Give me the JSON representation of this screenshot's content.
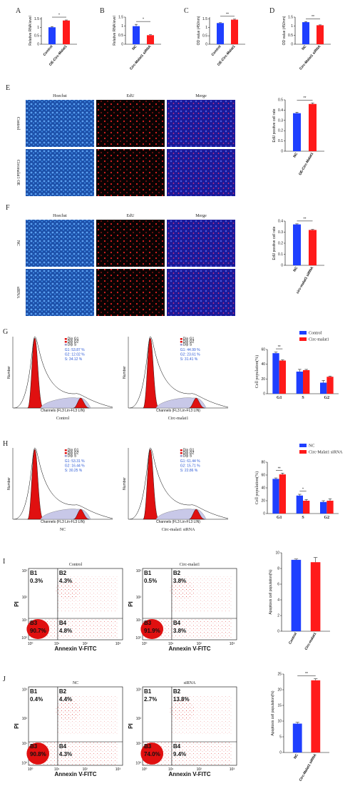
{
  "panels": {
    "A": {
      "letter": "A",
      "ylabel": "Relative RNA level",
      "cats": [
        "Control",
        "OE-Circ-Malat1"
      ],
      "vals": [
        1.0,
        1.4
      ],
      "err": [
        0.04,
        0.03
      ],
      "ymax": 1.6,
      "ticks": [
        0,
        0.5,
        1.0,
        1.5
      ],
      "sig": "*"
    },
    "B": {
      "letter": "B",
      "ylabel": "Relative RNA level",
      "cats": [
        "NC",
        "Circ-Malat1 siRNA"
      ],
      "vals": [
        1.0,
        0.5
      ],
      "err": [
        0.1,
        0.03
      ],
      "ymax": 1.5,
      "ticks": [
        0,
        0.5,
        1.0,
        1.5
      ],
      "sig": "*"
    },
    "C": {
      "letter": "C",
      "ylabel": "OD value (450nm)",
      "cats": [
        "Control",
        "OE-Circ-Malat1"
      ],
      "vals": [
        1.25,
        1.45
      ],
      "err": [
        0.02,
        0.03
      ],
      "ymax": 1.6,
      "ticks": [
        0,
        0.5,
        1.0,
        1.5
      ],
      "sig": "**"
    },
    "D": {
      "letter": "D",
      "ylabel": "OD value (450nm)",
      "cats": [
        "NC",
        "Circ-Malat1 siRNA"
      ],
      "vals": [
        1.22,
        1.05
      ],
      "err": [
        0.03,
        0.02
      ],
      "ymax": 1.5,
      "ticks": [
        0,
        0.5,
        1.0,
        1.5
      ],
      "sig": "**"
    }
  },
  "micro": {
    "E": {
      "letter": "E",
      "cols": [
        "Hoechst",
        "EdU",
        "Merge"
      ],
      "rows": [
        "Control",
        "Circmalat1 OE"
      ]
    },
    "F": {
      "letter": "F",
      "cols": [
        "Hoechst",
        "EdU",
        "Merge"
      ],
      "rows": [
        "NC",
        "siRNA"
      ]
    }
  },
  "edu": {
    "E": {
      "ylabel": "EdU positive cell rate",
      "cats": [
        "NC",
        "OE-Circ-Malat1"
      ],
      "vals": [
        0.37,
        0.46
      ],
      "err": [
        0.01,
        0.01
      ],
      "ymax": 0.5,
      "ticks": [
        0,
        0.1,
        0.2,
        0.3,
        0.4,
        0.5
      ],
      "sig": "**"
    },
    "F": {
      "ylabel": "EdU positive cell rate",
      "cats": [
        "NC",
        "circ-malat1 siRNA"
      ],
      "vals": [
        0.37,
        0.32
      ],
      "err": [
        0.005,
        0.005
      ],
      "ymax": 0.4,
      "ticks": [
        0,
        0.1,
        0.2,
        0.3,
        0.4
      ],
      "sig": "**"
    }
  },
  "flow": {
    "G": {
      "letter": "G",
      "a": {
        "name": "Control",
        "stats": [
          "G1: 53.87 %",
          "G2: 12.02 %",
          "S: 34.12 %"
        ]
      },
      "b": {
        "name": "Circ-malat1",
        "stats": [
          "G1: 44.99 %",
          "G2: 23.61 %",
          "S: 31.41 %"
        ]
      }
    },
    "H": {
      "letter": "H",
      "a": {
        "name": "NC",
        "stats": [
          "G1: 53.31 %",
          "G2: 16.44 %",
          "S: 30.25 %"
        ]
      },
      "b": {
        "name": "Circ-malat1 siRNA",
        "stats": [
          "G1: 61.44 %",
          "G2: 15.71 %",
          "S: 22.86 %"
        ]
      }
    },
    "legend_small": [
      "Dip G1",
      "Dip G2",
      "Dip S"
    ],
    "xaxis": "Channels (FL3 Lin-FL3 LIN)",
    "yaxis": "Number"
  },
  "cycle": {
    "G": {
      "ylabel": "Cell population(%)",
      "legend": [
        "Control",
        "Circ-malat1"
      ],
      "cats": [
        "G1",
        "S",
        "G2"
      ],
      "s1": [
        55,
        30,
        15
      ],
      "s2": [
        45,
        32,
        23
      ],
      "e1": [
        1.5,
        3,
        3
      ],
      "e2": [
        1,
        1,
        1
      ],
      "ymax": 60,
      "ticks": [
        0,
        20,
        40,
        60
      ],
      "sig": "**"
    },
    "H": {
      "ylabel": "Cell population(%)",
      "legend": [
        "NC",
        "Circ-Malat1 siRNA"
      ],
      "cats": [
        "G1",
        "S",
        "G2"
      ],
      "s1": [
        54,
        28,
        18
      ],
      "s2": [
        61,
        20,
        20
      ],
      "e1": [
        1.5,
        2,
        2
      ],
      "e2": [
        2,
        2,
        3
      ],
      "ymax": 80,
      "ticks": [
        0,
        20,
        40,
        60,
        80
      ],
      "sig": "**",
      "sig2": "*"
    }
  },
  "apop": {
    "I": {
      "letter": "I",
      "a": {
        "name": "Control",
        "q": [
          "0.3%",
          "4.3%",
          "90.7%",
          "4.8%"
        ]
      },
      "b": {
        "name": "Circ-malat1",
        "q": [
          "0.5%",
          "3.8%",
          "91.9%",
          "3.8%"
        ]
      }
    },
    "J": {
      "letter": "J",
      "a": {
        "name": "NC",
        "q": [
          "0.4%",
          "4.4%",
          "90.8%",
          "4.3%"
        ]
      },
      "b": {
        "name": "siRNA",
        "q": [
          "2.7%",
          "13.8%",
          "74.0%",
          "9.4%"
        ]
      }
    },
    "quads": [
      "B1",
      "B2",
      "B3",
      "B4"
    ],
    "xlabel": "Annexin V-FITC",
    "ylabel": "PI",
    "ticks": [
      "10⁰",
      "10¹",
      "10²",
      "10³"
    ]
  },
  "apopbar": {
    "I": {
      "ylabel": "Apoptosis cell population(%)",
      "cats": [
        "Control",
        "Circ-malat1"
      ],
      "vals": [
        9.1,
        8.8
      ],
      "err": [
        0.1,
        0.6
      ],
      "ymax": 10,
      "ticks": [
        0,
        2,
        4,
        6,
        8,
        10
      ]
    },
    "J": {
      "ylabel": "Apoptosis cell population(%)",
      "cats": [
        "NC",
        "Circ-Malat1 siRNA"
      ],
      "vals": [
        9.2,
        23
      ],
      "err": [
        0.4,
        0.5
      ],
      "ymax": 25,
      "ticks": [
        0,
        5,
        10,
        15,
        20,
        25
      ],
      "sig": "**"
    }
  },
  "colors": {
    "blue": "#1f3fff",
    "red": "#ff1a1a",
    "nuclei": "#2a6fd6",
    "edu": "#e02020"
  }
}
